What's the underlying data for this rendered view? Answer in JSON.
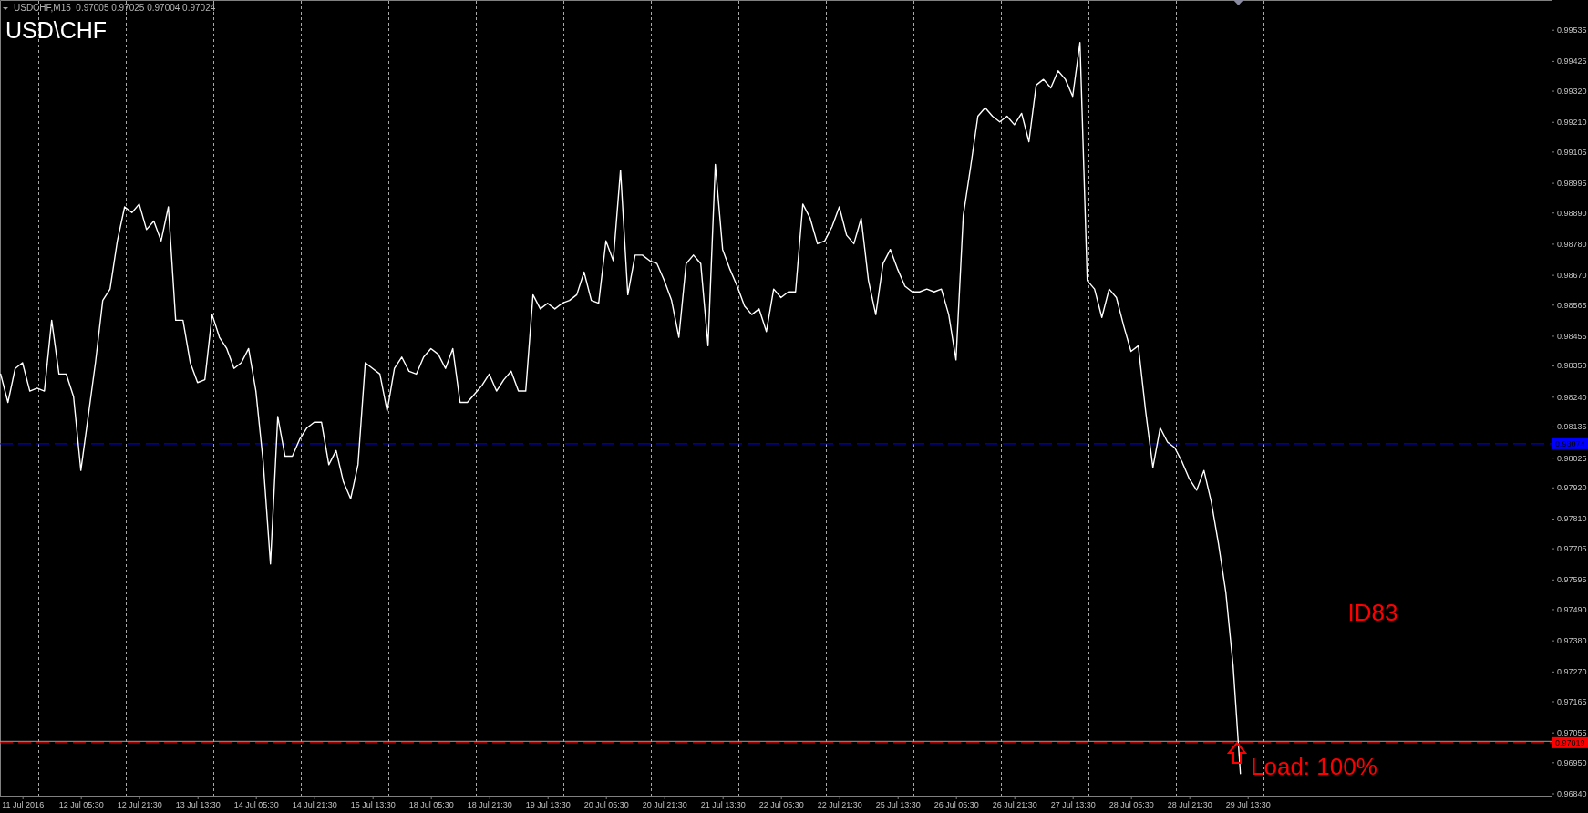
{
  "chart_data": {
    "type": "line",
    "title": "USD\\CHF",
    "subtitle": "USDCHF,M15  0.97005 0.97025 0.97004 0.97024",
    "annotations": [
      "ID83",
      "Load: 100%"
    ],
    "color": "#ffffff",
    "categories": [
      null,
      null,
      null,
      "11 Jul 2016",
      null,
      null,
      null,
      null,
      null,
      null,
      null,
      "12 Jul 05:30",
      null,
      null,
      null,
      null,
      null,
      null,
      null,
      "12 Jul 21:30",
      null,
      null,
      null,
      null,
      null,
      null,
      null,
      "13 Jul 13:30",
      null,
      null,
      null,
      null,
      null,
      null,
      null,
      "14 Jul 05:30",
      null,
      null,
      null,
      null,
      null,
      null,
      null,
      "14 Jul 21:30",
      null,
      null,
      null,
      null,
      null,
      null,
      null,
      "15 Jul 13:30",
      null,
      null,
      null,
      null,
      null,
      null,
      null,
      "18 Jul 05:30",
      null,
      null,
      null,
      null,
      null,
      null,
      null,
      "18 Jul 21:30",
      null,
      null,
      null,
      null,
      null,
      null,
      null,
      "19 Jul 13:30",
      null,
      null,
      null,
      null,
      null,
      null,
      null,
      "20 Jul 05:30",
      null,
      null,
      null,
      null,
      null,
      null,
      null,
      "20 Jul 21:30",
      null,
      null,
      null,
      null,
      null,
      null,
      null,
      "21 Jul 13:30",
      null,
      null,
      null,
      null,
      null,
      null,
      null,
      "22 Jul 05:30",
      null,
      null,
      null,
      null,
      null,
      null,
      null,
      "22 Jul 21:30",
      null,
      null,
      null,
      null,
      null,
      null,
      null,
      "25 Jul 13:30",
      null,
      null,
      null,
      null,
      null,
      null,
      null,
      "26 Jul 05:30",
      null,
      null,
      null,
      null,
      null,
      null,
      null,
      "26 Jul 21:30",
      null,
      null,
      null,
      null,
      null,
      null,
      null,
      "27 Jul 13:30",
      null,
      null,
      null,
      null,
      null,
      null,
      null,
      "28 Jul 05:30",
      null,
      null,
      null,
      null,
      null,
      null,
      null,
      "28 Jul 21:30",
      null,
      null,
      null,
      null,
      null,
      null,
      null,
      "29 Jul 13:30"
    ],
    "values": [
      0.9832,
      0.9822,
      0.9834,
      0.9836,
      0.9826,
      0.9827,
      0.9826,
      0.9851,
      0.9832,
      0.9832,
      0.9824,
      0.9798,
      0.9817,
      0.9836,
      0.9858,
      0.9862,
      0.9879,
      0.9891,
      0.9889,
      0.9892,
      0.9883,
      0.9886,
      0.9879,
      0.9891,
      0.9851,
      0.9851,
      0.9836,
      0.9829,
      0.983,
      0.9853,
      0.9845,
      0.9841,
      0.9834,
      0.9836,
      0.9841,
      0.9826,
      0.9801,
      0.9765,
      0.9817,
      0.9803,
      0.9803,
      0.9809,
      0.9813,
      0.9815,
      0.9815,
      0.98,
      0.9805,
      0.9794,
      0.9788,
      0.98,
      0.9836,
      0.9834,
      0.9832,
      0.9819,
      0.9834,
      0.9838,
      0.9833,
      0.9832,
      0.9838,
      0.9841,
      0.9839,
      0.9834,
      0.9841,
      0.9822,
      0.9822,
      0.9825,
      0.9828,
      0.9832,
      0.9826,
      0.983,
      0.9833,
      0.9826,
      0.9826,
      0.986,
      0.9855,
      0.9857,
      0.9855,
      0.9857,
      0.9858,
      0.986,
      0.9868,
      0.9858,
      0.9857,
      0.9879,
      0.9872,
      0.9904,
      0.986,
      0.9874,
      0.9874,
      0.9872,
      0.9871,
      0.9865,
      0.9858,
      0.9845,
      0.9871,
      0.9874,
      0.9871,
      0.9842,
      0.9906,
      0.9876,
      0.9869,
      0.9863,
      0.9856,
      0.9853,
      0.9855,
      0.9847,
      0.9862,
      0.9859,
      0.9861,
      0.9861,
      0.9892,
      0.9887,
      0.9878,
      0.9879,
      0.9884,
      0.9891,
      0.9881,
      0.9878,
      0.9887,
      0.9865,
      0.9853,
      0.9871,
      0.9876,
      0.9869,
      0.9863,
      0.9861,
      0.9861,
      0.9862,
      0.9861,
      0.9862,
      0.9853,
      0.9837,
      0.9888,
      0.9905,
      0.9923,
      0.9926,
      0.9923,
      0.9921,
      0.9923,
      0.992,
      0.9924,
      0.9914,
      0.9934,
      0.9936,
      0.9933,
      0.9939,
      0.9936,
      0.993,
      0.9949,
      0.9865,
      0.9862,
      0.9852,
      0.9862,
      0.9859,
      0.9849,
      0.984,
      0.9842,
      0.9819,
      0.9799,
      0.9813,
      0.9808,
      0.9806,
      0.9801,
      0.9795,
      0.9791,
      0.9798,
      0.9787,
      0.9772,
      0.9755,
      0.9729,
      0.9691,
      null
    ],
    "ylim": [
      0.96832,
      0.99637
    ],
    "yticks": [
      0.99535,
      0.99425,
      {
        "value": 0.9932,
        "label": "0.99320"
      },
      {
        "value": 0.9921,
        "label": "0.99210"
      },
      0.99105,
      0.98995,
      {
        "value": 0.9889,
        "label": "0.98890"
      },
      {
        "value": 0.9878,
        "label": "0.98780"
      },
      {
        "value": 0.9867,
        "label": "0.98670"
      },
      0.98565,
      0.98455,
      {
        "value": 0.9835,
        "label": "0.98350"
      },
      {
        "value": 0.9824,
        "label": "0.98240"
      },
      0.98135,
      0.98025,
      {
        "value": 0.9792,
        "label": "0.97920"
      },
      {
        "value": 0.9781,
        "label": "0.97810"
      },
      0.97705,
      0.97595,
      {
        "value": 0.9749,
        "label": "0.97490"
      },
      {
        "value": 0.9738,
        "label": "0.97380"
      },
      {
        "value": 0.9727,
        "label": "0.97270"
      },
      0.97165,
      0.97055,
      {
        "value": 0.9695,
        "label": "0.96950"
      },
      {
        "value": 0.9684,
        "label": "0.96840"
      }
    ],
    "grid": "x",
    "ref_lines": [
      {
        "axis": "y",
        "value": 0.98074,
        "label": "0.98074",
        "color": "#0000ff",
        "line_style": "dashed"
      },
      {
        "axis": "y",
        "value": 0.97024,
        "color": "#a0a0a0",
        "line_style": "solid"
      },
      {
        "axis": "y",
        "value": 0.97019,
        "label": "0.97019",
        "color": "#ff0000",
        "line_style": "dashed"
      }
    ]
  }
}
